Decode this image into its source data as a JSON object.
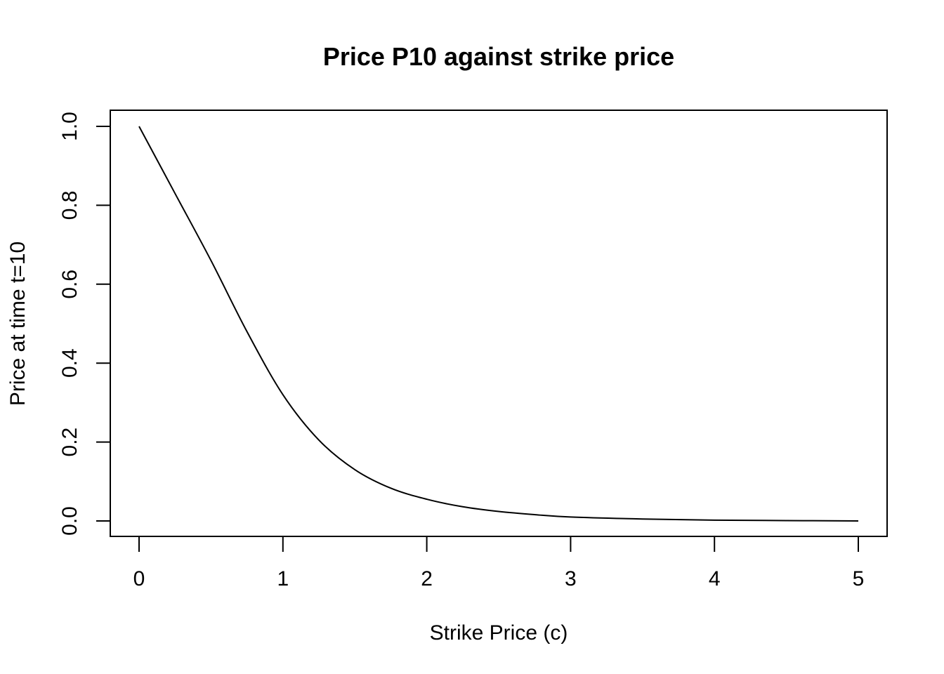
{
  "chart_data": {
    "type": "line",
    "title": "Price P10 against strike price",
    "xlabel": "Strike Price (c)",
    "ylabel": "Price at time t=10",
    "xlim": [
      0,
      5
    ],
    "ylim": [
      0,
      1
    ],
    "x_ticks": [
      "0",
      "1",
      "2",
      "3",
      "4",
      "5"
    ],
    "y_ticks": [
      "0.0",
      "0.2",
      "0.4",
      "0.6",
      "0.8",
      "1.0"
    ],
    "grid": false,
    "legend": "none",
    "series": [
      {
        "x": [
          0,
          0.25,
          0.5,
          0.75,
          1.0,
          1.25,
          1.5,
          1.75,
          2.0,
          2.25,
          2.5,
          2.75,
          3.0,
          3.5,
          4.0,
          4.5,
          5.0
        ],
        "y": [
          1.0,
          0.83,
          0.66,
          0.48,
          0.32,
          0.205,
          0.13,
          0.083,
          0.055,
          0.036,
          0.024,
          0.016,
          0.01,
          0.005,
          0.002,
          0.001,
          0.0
        ]
      }
    ]
  }
}
